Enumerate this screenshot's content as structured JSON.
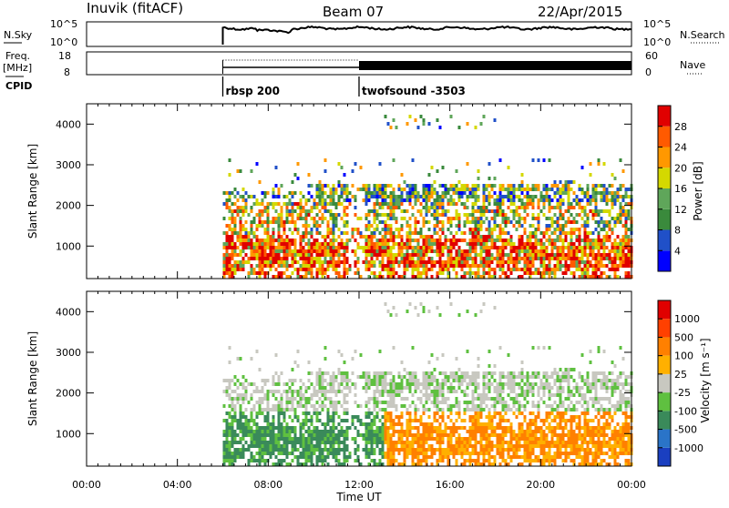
{
  "header": {
    "station": "Inuvik (fitACF)",
    "beam": "Beam 07",
    "date": "22/Apr/2015"
  },
  "top_panels": {
    "nsky_label": "N.Sky",
    "nsky_ticks": [
      "10^5",
      "10^0"
    ],
    "nsearch_label": "N.Search",
    "nsearch_ticks": [
      "10^5",
      "10^0"
    ],
    "freq_label": "Freq.",
    "freq_unit": "[MHz]",
    "freq_ticks": [
      "18",
      "8"
    ],
    "nave_label": "Nave",
    "nave_ticks": [
      "60",
      "0"
    ],
    "cpid_label": "CPID",
    "cpid_segments": [
      {
        "label": "rbsp 200",
        "start_hour": 6.0
      },
      {
        "label": "twofsound -3503",
        "start_hour": 12.0
      }
    ]
  },
  "chart_data": [
    {
      "type": "heatmap",
      "name": "power",
      "ylabel": "Slant Range [km]",
      "xlabel": "",
      "xlim": [
        0,
        24
      ],
      "ylim": [
        200,
        4500
      ],
      "yticks": [
        "1000",
        "2000",
        "3000",
        "4000"
      ],
      "colorbar_label": "Power [dB]",
      "colorbar_ticks": [
        "28",
        "24",
        "20",
        "16",
        "12",
        "8",
        "4"
      ],
      "colors": [
        "#0000ff",
        "#2050c8",
        "#3a8a3c",
        "#5fa65a",
        "#d4d800",
        "#ff9800",
        "#ff5a00",
        "#e00000"
      ],
      "data_start_hour": 6.0
    },
    {
      "type": "heatmap",
      "name": "velocity",
      "ylabel": "Slant Range [km]",
      "xlabel": "Time UT",
      "xlim": [
        0,
        24
      ],
      "ylim": [
        200,
        4500
      ],
      "yticks": [
        "1000",
        "2000",
        "3000",
        "4000"
      ],
      "xticks": [
        "00:00",
        "04:00",
        "08:00",
        "12:00",
        "16:00",
        "20:00",
        "00:00"
      ],
      "colorbar_label": "Velocity [m s⁻¹]",
      "colorbar_ticks": [
        "1000",
        "500",
        "100",
        "25",
        "-25",
        "-100",
        "-500",
        "-1000"
      ],
      "colors": [
        "#1a3fc0",
        "#2a74c8",
        "#3a8a5a",
        "#5fc040",
        "#c8c8c0",
        "#ffb000",
        "#ff8000",
        "#ff4000",
        "#e00000"
      ],
      "data_start_hour": 6.0
    }
  ]
}
